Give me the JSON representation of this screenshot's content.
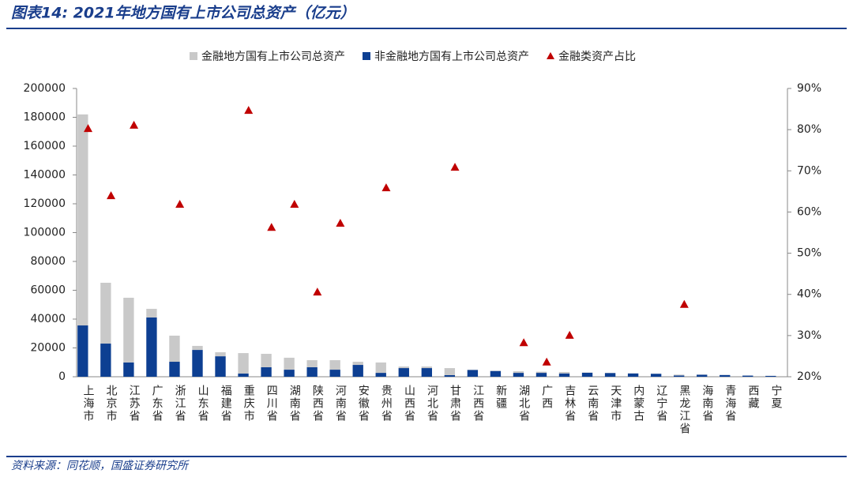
{
  "chart_data": {
    "type": "bar-scatter",
    "title": "图表14: 2021年地方国有上市公司总资产（亿元）",
    "source": "资料来源：同花顺，国盛证券研究所",
    "categories": [
      "上海市",
      "北京市",
      "江苏省",
      "广东省",
      "浙江省",
      "山东省",
      "福建省",
      "重庆市",
      "四川省",
      "湖南省",
      "陕西省",
      "河南省",
      "安徽省",
      "贵州省",
      "山西省",
      "河北省",
      "甘肃省",
      "江西省",
      "新疆",
      "湖北省",
      "广西",
      "吉林省",
      "云南省",
      "天津市",
      "内蒙古",
      "辽宁省",
      "黑龙江省",
      "海南省",
      "青海省",
      "西藏",
      "宁夏"
    ],
    "series": [
      {
        "name": "非金融地方国有上市公司总资产",
        "color": "#0d3f92",
        "stack": true,
        "values": [
          35600,
          23000,
          9900,
          41100,
          10400,
          18600,
          14200,
          2200,
          6600,
          4900,
          6600,
          4900,
          8200,
          2700,
          6000,
          6000,
          1100,
          4700,
          4000,
          2700,
          2700,
          2300,
          2800,
          2600,
          2300,
          2100,
          900,
          1400,
          1200,
          800,
          600
        ]
      },
      {
        "name": "金融地方国有上市公司总资产",
        "color": "#c9c9c9",
        "stack": true,
        "values": [
          146400,
          42200,
          44900,
          6000,
          18100,
          2800,
          2800,
          14200,
          9300,
          8300,
          4900,
          6600,
          2200,
          7200,
          1100,
          1100,
          4900,
          200,
          200,
          1100,
          800,
          1000,
          200,
          100,
          100,
          100,
          600,
          100,
          50,
          50,
          30
        ]
      },
      {
        "name": "金融类资产占比",
        "color": "#c00000",
        "axis": "y2",
        "marker": "triangle",
        "values": [
          80.2,
          63.9,
          81.0,
          null,
          61.8,
          null,
          null,
          84.6,
          56.2,
          61.8,
          40.5,
          57.2,
          null,
          65.8,
          null,
          null,
          70.8,
          null,
          null,
          28.2,
          23.5,
          30.0,
          null,
          null,
          null,
          null,
          37.5,
          null,
          null,
          null,
          null
        ]
      }
    ],
    "legend_order": [
      1,
      0,
      2
    ],
    "ylim": [
      0,
      200000
    ],
    "yticks": [
      0,
      20000,
      40000,
      60000,
      80000,
      100000,
      120000,
      140000,
      160000,
      180000,
      200000
    ],
    "y2lim": [
      20,
      90
    ],
    "y2ticks": [
      {
        "value": 20,
        "label": "20%"
      },
      {
        "value": 30,
        "label": "30%"
      },
      {
        "value": 40,
        "label": "40%"
      },
      {
        "value": 50,
        "label": "50%"
      },
      {
        "value": 60,
        "label": "60%"
      },
      {
        "value": 70,
        "label": "70%"
      },
      {
        "value": 80,
        "label": "80%"
      },
      {
        "value": 90,
        "label": "90%"
      }
    ],
    "grid": false
  }
}
